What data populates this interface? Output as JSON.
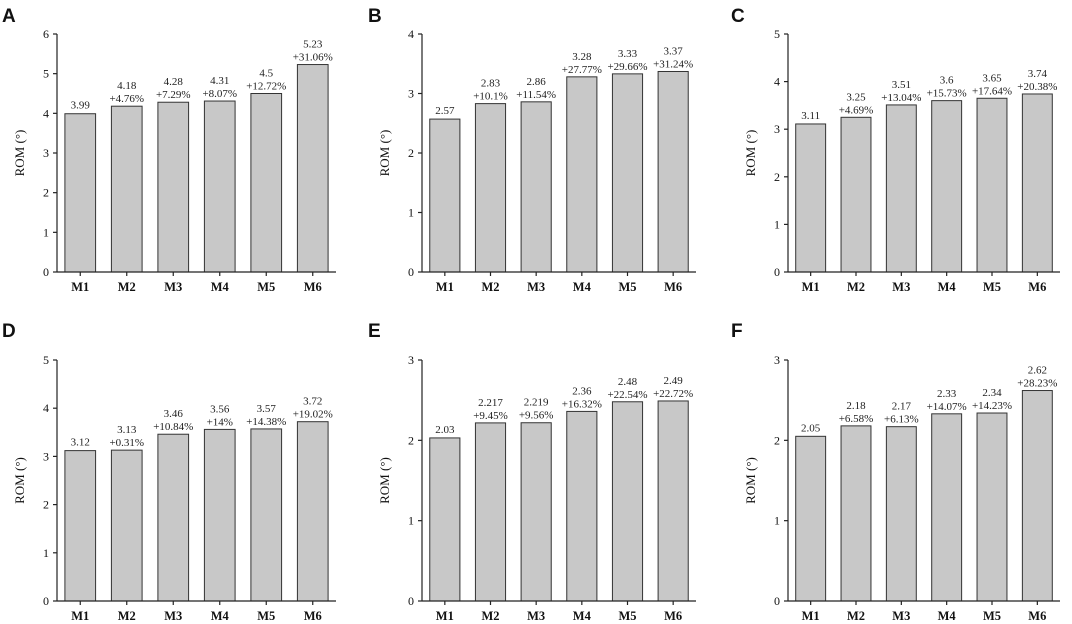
{
  "chart_data": [
    {
      "type": "bar",
      "panel": "A",
      "categories": [
        "M1",
        "M2",
        "M3",
        "M4",
        "M5",
        "M6"
      ],
      "values": [
        3.99,
        4.18,
        4.28,
        4.31,
        4.5,
        5.23
      ],
      "value_labels": [
        "3.99",
        "4.18",
        "4.28",
        "4.31",
        "4.5",
        "5.23"
      ],
      "change_labels": [
        "",
        "+4.76%",
        "+7.29%",
        "+8.07%",
        "+12.72%",
        "+31.06%"
      ],
      "ylabel": "ROM (°)",
      "ylim": [
        0,
        6
      ],
      "yticks": [
        "0",
        "1",
        "2",
        "3",
        "4",
        "5",
        "6"
      ]
    },
    {
      "type": "bar",
      "panel": "B",
      "categories": [
        "M1",
        "M2",
        "M3",
        "M4",
        "M5",
        "M6"
      ],
      "values": [
        2.57,
        2.83,
        2.86,
        3.28,
        3.33,
        3.37
      ],
      "value_labels": [
        "2.57",
        "2.83",
        "2.86",
        "3.28",
        "3.33",
        "3.37"
      ],
      "change_labels": [
        "",
        "+10.1%",
        "+11.54%",
        "+27.77%",
        "+29.66%",
        "+31.24%"
      ],
      "ylabel": "ROM (°)",
      "ylim": [
        0,
        4
      ],
      "yticks": [
        "0",
        "1",
        "2",
        "3",
        "4"
      ]
    },
    {
      "type": "bar",
      "panel": "C",
      "categories": [
        "M1",
        "M2",
        "M3",
        "M4",
        "M5",
        "M6"
      ],
      "values": [
        3.11,
        3.25,
        3.51,
        3.6,
        3.65,
        3.74
      ],
      "value_labels": [
        "3.11",
        "3.25",
        "3.51",
        "3.6",
        "3.65",
        "3.74"
      ],
      "change_labels": [
        "",
        "+4.69%",
        "+13.04%",
        "+15.73%",
        "+17.64%",
        "+20.38%"
      ],
      "ylabel": "ROM (°)",
      "ylim": [
        0,
        5
      ],
      "yticks": [
        "0",
        "1",
        "2",
        "3",
        "4",
        "5"
      ]
    },
    {
      "type": "bar",
      "panel": "D",
      "categories": [
        "M1",
        "M2",
        "M3",
        "M4",
        "M5",
        "M6"
      ],
      "values": [
        3.12,
        3.13,
        3.46,
        3.56,
        3.57,
        3.72
      ],
      "value_labels": [
        "3.12",
        "3.13",
        "3.46",
        "3.56",
        "3.57",
        "3.72"
      ],
      "change_labels": [
        "",
        "+0.31%",
        "+10.84%",
        "+14%",
        "+14.38%",
        "+19.02%"
      ],
      "ylabel": "ROM (°)",
      "ylim": [
        0,
        5
      ],
      "yticks": [
        "0",
        "1",
        "2",
        "3",
        "4",
        "5"
      ]
    },
    {
      "type": "bar",
      "panel": "E",
      "categories": [
        "M1",
        "M2",
        "M3",
        "M4",
        "M5",
        "M6"
      ],
      "values": [
        2.03,
        2.217,
        2.219,
        2.36,
        2.48,
        2.49
      ],
      "value_labels": [
        "2.03",
        "2.217",
        "2.219",
        "2.36",
        "2.48",
        "2.49"
      ],
      "change_labels": [
        "",
        "+9.45%",
        "+9.56%",
        "+16.32%",
        "+22.54%",
        "+22.72%"
      ],
      "ylabel": "ROM (°)",
      "ylim": [
        0,
        3
      ],
      "yticks": [
        "0",
        "1",
        "2",
        "3"
      ]
    },
    {
      "type": "bar",
      "panel": "F",
      "categories": [
        "M1",
        "M2",
        "M3",
        "M4",
        "M5",
        "M6"
      ],
      "values": [
        2.05,
        2.18,
        2.17,
        2.33,
        2.34,
        2.62
      ],
      "value_labels": [
        "2.05",
        "2.18",
        "2.17",
        "2.33",
        "2.34",
        "2.62"
      ],
      "change_labels": [
        "",
        "+6.58%",
        "+6.13%",
        "+14.07%",
        "+14.23%",
        "+28.23%"
      ],
      "ylabel": "ROM (°)",
      "ylim": [
        0,
        3
      ],
      "yticks": [
        "0",
        "1",
        "2",
        "3"
      ]
    }
  ]
}
